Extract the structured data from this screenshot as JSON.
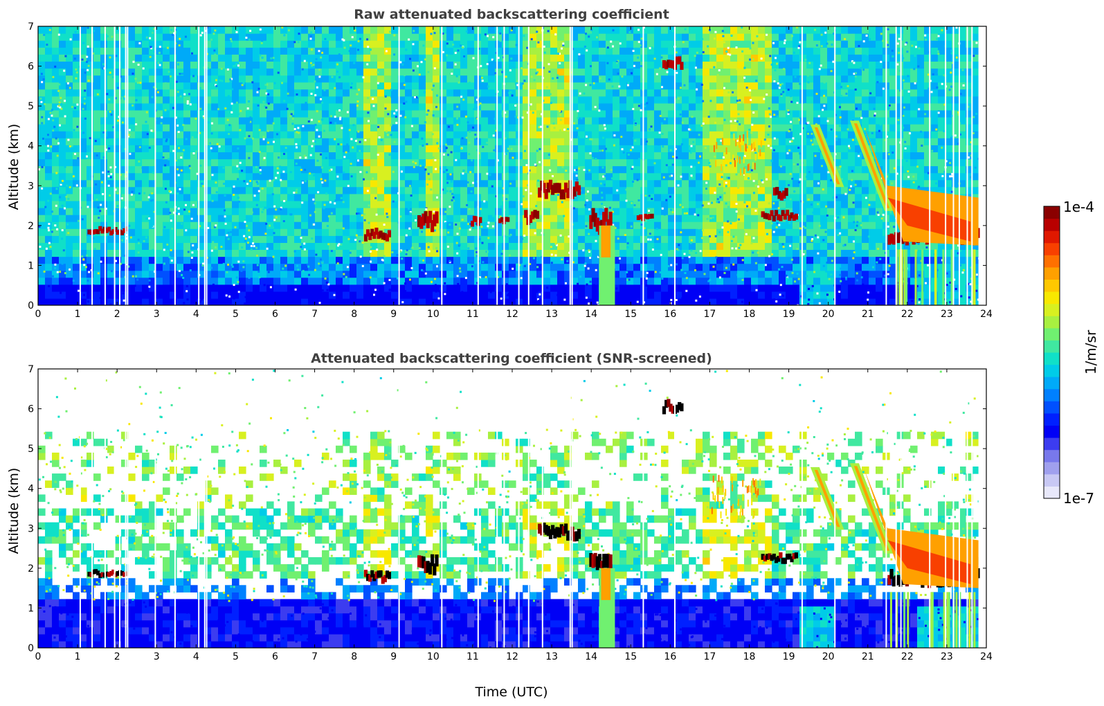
{
  "figure": {
    "xlabel": "Time (UTC)"
  },
  "colorbar": {
    "top_label": "1e-4",
    "bottom_label": "1e-7",
    "unit_label": "1/m/sr",
    "colors": [
      "#e8e8fa",
      "#c8c8f4",
      "#a0a0ee",
      "#7878ec",
      "#3c3cf0",
      "#0000f5",
      "#0020ff",
      "#0050ff",
      "#0080ff",
      "#00aaf8",
      "#00cce8",
      "#10e0c8",
      "#40e8a0",
      "#70f070",
      "#a8f040",
      "#d8f020",
      "#f8e800",
      "#ffc800",
      "#ffa000",
      "#ff7000",
      "#f84000",
      "#e01800",
      "#b80000",
      "#8a0000"
    ]
  },
  "chart_data": [
    {
      "type": "heatmap",
      "title": "Raw attenuated backscattering coefficient",
      "xlabel": "",
      "ylabel": "Altitude (km)",
      "xlim": [
        0,
        24
      ],
      "ylim": [
        0,
        7
      ],
      "xticks": [
        "0",
        "1",
        "2",
        "3",
        "4",
        "5",
        "6",
        "7",
        "8",
        "9",
        "10",
        "11",
        "12",
        "13",
        "14",
        "15",
        "16",
        "17",
        "18",
        "19",
        "20",
        "21",
        "22",
        "23",
        "24"
      ],
      "yticks": [
        "0",
        "1",
        "2",
        "3",
        "4",
        "5",
        "6",
        "7"
      ],
      "features": [
        {
          "kind": "layer",
          "t0": 1.25,
          "t1": 2.25,
          "alt": 1.87,
          "thick": 0.12
        },
        {
          "kind": "layer",
          "t0": 8.25,
          "t1": 8.9,
          "alt": 1.78,
          "thick": 0.18
        },
        {
          "kind": "layer",
          "t0": 9.6,
          "t1": 10.1,
          "alt": 2.1,
          "thick": 0.3
        },
        {
          "kind": "layer",
          "t0": 10.95,
          "t1": 11.2,
          "alt": 2.1,
          "thick": 0.15
        },
        {
          "kind": "layer",
          "t0": 11.65,
          "t1": 11.9,
          "alt": 2.1,
          "thick": 0.12
        },
        {
          "kind": "layer",
          "t0": 12.3,
          "t1": 12.65,
          "alt": 2.2,
          "thick": 0.2
        },
        {
          "kind": "layer",
          "t0": 12.65,
          "t1": 13.7,
          "alt": 2.9,
          "thick": 0.25
        },
        {
          "kind": "layer",
          "t0": 13.95,
          "t1": 14.5,
          "alt": 2.1,
          "thick": 0.35
        },
        {
          "kind": "layer",
          "t0": 15.15,
          "t1": 15.55,
          "alt": 2.18,
          "thick": 0.12
        },
        {
          "kind": "layer",
          "t0": 15.8,
          "t1": 16.3,
          "alt": 6.05,
          "thick": 0.2
        },
        {
          "kind": "layer",
          "t0": 18.3,
          "t1": 19.2,
          "alt": 2.25,
          "thick": 0.15
        },
        {
          "kind": "layer",
          "t0": 18.6,
          "t1": 18.95,
          "alt": 2.8,
          "thick": 0.2
        },
        {
          "kind": "layer",
          "t0": 21.5,
          "t1": 23.8,
          "alt": 1.75,
          "thick": 0.25
        },
        {
          "kind": "virga",
          "t0": 17.0,
          "t1": 18.3,
          "alt": 3.9,
          "thick": 0.5
        },
        {
          "kind": "fall",
          "t0": 19.6,
          "t1": 20.35,
          "alt0": 4.5,
          "alt1": 3.0
        },
        {
          "kind": "fall",
          "t0": 20.6,
          "t1": 21.6,
          "alt0": 4.6,
          "alt1": 2.4
        },
        {
          "kind": "precip",
          "t0": 14.2,
          "t1": 14.6
        },
        {
          "kind": "broad",
          "t0": 20.9,
          "t1": 23.8,
          "alt0": 3.0,
          "alt1": 1.5
        }
      ]
    },
    {
      "type": "heatmap",
      "title": "Attenuated backscattering coefficient (SNR-screened)",
      "xlabel": "Time (UTC)",
      "ylabel": "Altitude (km)",
      "xlim": [
        0,
        24
      ],
      "ylim": [
        0,
        7
      ],
      "xticks": [
        "0",
        "1",
        "2",
        "3",
        "4",
        "5",
        "6",
        "7",
        "8",
        "9",
        "10",
        "11",
        "12",
        "13",
        "14",
        "15",
        "16",
        "17",
        "18",
        "19",
        "20",
        "21",
        "22",
        "23",
        "24"
      ],
      "yticks": [
        "0",
        "1",
        "2",
        "3",
        "4",
        "5",
        "6",
        "7"
      ],
      "features": [
        {
          "kind": "layer",
          "t0": 1.25,
          "t1": 2.25,
          "alt": 1.87,
          "thick": 0.12
        },
        {
          "kind": "layer",
          "t0": 8.25,
          "t1": 8.9,
          "alt": 1.78,
          "thick": 0.18
        },
        {
          "kind": "layer",
          "t0": 9.6,
          "t1": 10.1,
          "alt": 2.1,
          "thick": 0.3
        },
        {
          "kind": "layer",
          "t0": 12.65,
          "t1": 13.7,
          "alt": 2.9,
          "thick": 0.25
        },
        {
          "kind": "layer",
          "t0": 13.95,
          "t1": 14.5,
          "alt": 2.1,
          "thick": 0.35
        },
        {
          "kind": "layer",
          "t0": 15.8,
          "t1": 16.3,
          "alt": 6.05,
          "thick": 0.2
        },
        {
          "kind": "layer",
          "t0": 18.3,
          "t1": 19.2,
          "alt": 2.25,
          "thick": 0.15
        },
        {
          "kind": "layer",
          "t0": 21.5,
          "t1": 23.8,
          "alt": 1.75,
          "thick": 0.25
        },
        {
          "kind": "virga",
          "t0": 17.0,
          "t1": 18.3,
          "alt": 3.9,
          "thick": 0.5
        },
        {
          "kind": "fall",
          "t0": 19.6,
          "t1": 20.35,
          "alt0": 4.5,
          "alt1": 3.0
        },
        {
          "kind": "fall",
          "t0": 20.6,
          "t1": 21.6,
          "alt0": 4.6,
          "alt1": 2.4
        },
        {
          "kind": "precip",
          "t0": 14.2,
          "t1": 14.6
        },
        {
          "kind": "broad",
          "t0": 20.9,
          "t1": 23.8,
          "alt0": 3.0,
          "alt1": 1.5
        }
      ]
    }
  ]
}
